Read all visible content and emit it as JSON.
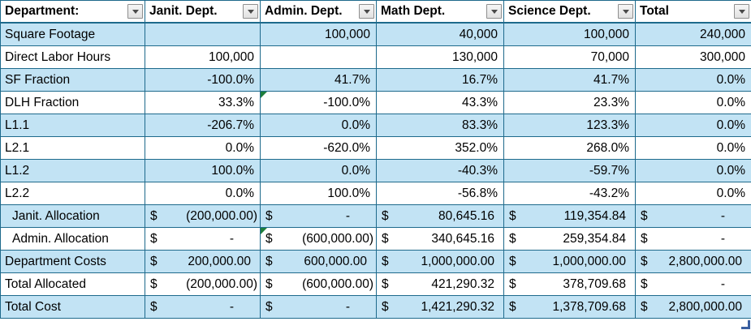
{
  "colors": {
    "table_border": "#1e6a8c",
    "band_fill": "#c2e3f4",
    "error_flag": "#1e7e3c",
    "resize_handle": "#3a5fa0",
    "header_bg": "#ffffff",
    "text": "#000000"
  },
  "icons": {
    "filter_dropdown": "filter-dropdown-icon",
    "error_indicator": "error-indicator-triangle",
    "resize_handle": "table-resize-handle"
  },
  "table": {
    "columns": [
      {
        "label": "Department:"
      },
      {
        "label": "Janit. Dept."
      },
      {
        "label": "Admin. Dept."
      },
      {
        "label": "Math Dept."
      },
      {
        "label": "Science Dept."
      },
      {
        "label": "Total"
      }
    ],
    "rows": [
      {
        "label": "Square Footage",
        "type": "number",
        "cells": [
          "",
          "100,000",
          "40,000",
          "100,000",
          "240,000"
        ]
      },
      {
        "label": "Direct Labor Hours",
        "type": "number",
        "cells": [
          "100,000",
          "",
          "130,000",
          "70,000",
          "300,000"
        ]
      },
      {
        "label": "SF Fraction",
        "type": "percent",
        "cells": [
          "-100.0%",
          "41.7%",
          "16.7%",
          "41.7%",
          "0.0%"
        ]
      },
      {
        "label": "DLH Fraction",
        "type": "percent",
        "cells": [
          "33.3%",
          "-100.0%",
          "43.3%",
          "23.3%",
          "0.0%"
        ],
        "error_flags": [
          1
        ]
      },
      {
        "label": "L1.1",
        "type": "percent",
        "cells": [
          "-206.7%",
          "0.0%",
          "83.3%",
          "123.3%",
          "0.0%"
        ]
      },
      {
        "label": "L2.1",
        "type": "percent",
        "cells": [
          "0.0%",
          "-620.0%",
          "352.0%",
          "268.0%",
          "0.0%"
        ]
      },
      {
        "label": "L1.2",
        "type": "percent",
        "cells": [
          "100.0%",
          "0.0%",
          "-40.3%",
          "-59.7%",
          "0.0%"
        ]
      },
      {
        "label": "L2.2",
        "type": "percent",
        "cells": [
          "0.0%",
          "100.0%",
          "-56.8%",
          "-43.2%",
          "0.0%"
        ]
      },
      {
        "label": "Janit. Allocation",
        "type": "currency",
        "indent": true,
        "cells": [
          "$ (200,000.00)",
          "$ -",
          "$ 80,645.16",
          "$ 119,354.84",
          "$ -"
        ]
      },
      {
        "label": "Admin. Allocation",
        "type": "currency",
        "indent": true,
        "cells": [
          "$ -",
          "$ (600,000.00)",
          "$ 340,645.16",
          "$ 259,354.84",
          "$ -"
        ],
        "error_flags": [
          1
        ]
      },
      {
        "label": "Department Costs",
        "type": "currency",
        "cells": [
          "$ 200,000.00",
          "$ 600,000.00",
          "$ 1,000,000.00",
          "$ 1,000,000.00",
          "$ 2,800,000.00"
        ]
      },
      {
        "label": "Total Allocated",
        "type": "currency",
        "cells": [
          "$ (200,000.00)",
          "$ (600,000.00)",
          "$ 421,290.32",
          "$ 378,709.68",
          "$ -"
        ]
      },
      {
        "label": "Total Cost",
        "type": "currency",
        "cells": [
          "$ -",
          "$ -",
          "$ 1,421,290.32",
          "$ 1,378,709.68",
          "$ 2,800,000.00"
        ]
      }
    ]
  }
}
